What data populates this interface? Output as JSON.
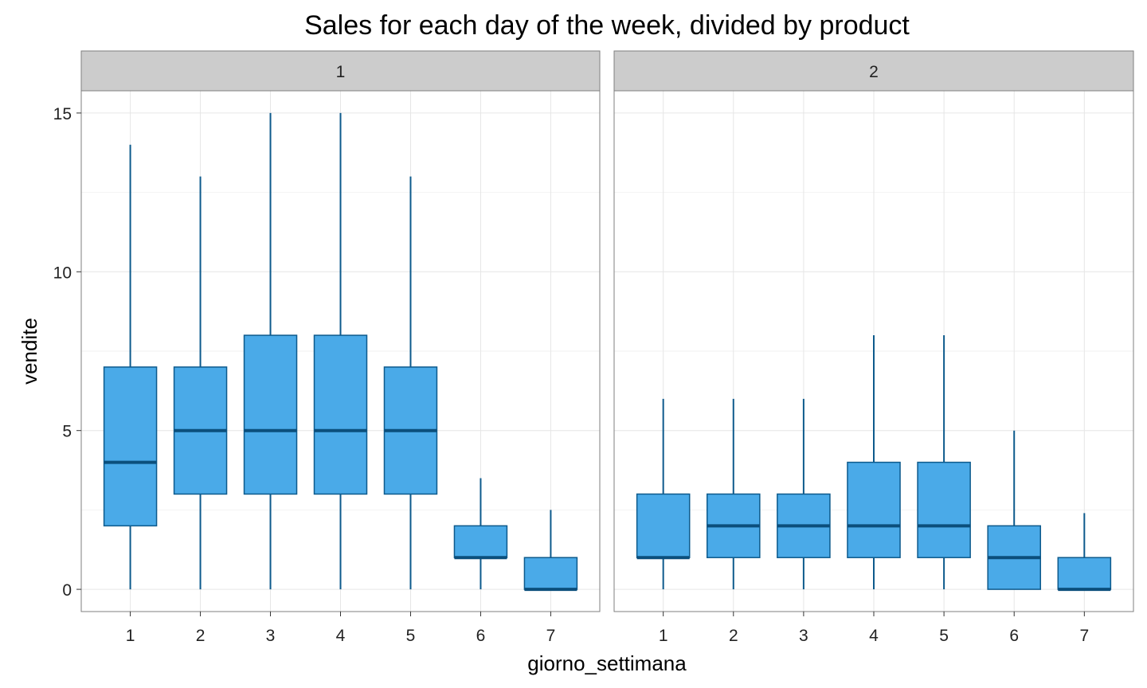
{
  "chart_data": {
    "type": "boxplot",
    "title": "Sales for each day of the week, divided by product",
    "xlabel": "giorno_settimana",
    "ylabel": "vendite",
    "ylim": [
      -0.7,
      15.7
    ],
    "yticks": [
      0,
      5,
      10,
      15
    ],
    "categories": [
      "1",
      "2",
      "3",
      "4",
      "5",
      "6",
      "7"
    ],
    "grid": true,
    "colors": {
      "box_fill": "#4aaae8",
      "box_stroke": "#0d5a8c",
      "median": "#0b4f7c",
      "strip_fill": "#cccccc",
      "panel_border": "#7f7f7f",
      "grid": "#e6e6e6"
    },
    "facets": [
      {
        "label": "1",
        "boxes": [
          {
            "x": "1",
            "min": 0,
            "q1": 2,
            "median": 4,
            "q3": 7,
            "max": 14
          },
          {
            "x": "2",
            "min": 0,
            "q1": 3,
            "median": 5,
            "q3": 7,
            "max": 13
          },
          {
            "x": "3",
            "min": 0,
            "q1": 3,
            "median": 5,
            "q3": 8,
            "max": 15
          },
          {
            "x": "4",
            "min": 0,
            "q1": 3,
            "median": 5,
            "q3": 8,
            "max": 15
          },
          {
            "x": "5",
            "min": 0,
            "q1": 3,
            "median": 5,
            "q3": 7,
            "max": 13
          },
          {
            "x": "6",
            "min": 0,
            "q1": 1,
            "median": 1,
            "q3": 2,
            "max": 3.5
          },
          {
            "x": "7",
            "min": 0,
            "q1": 0,
            "median": 0,
            "q3": 1,
            "max": 2.5
          }
        ]
      },
      {
        "label": "2",
        "boxes": [
          {
            "x": "1",
            "min": 0,
            "q1": 1,
            "median": 1,
            "q3": 3,
            "max": 6
          },
          {
            "x": "2",
            "min": 0,
            "q1": 1,
            "median": 2,
            "q3": 3,
            "max": 6
          },
          {
            "x": "3",
            "min": 0,
            "q1": 1,
            "median": 2,
            "q3": 3,
            "max": 6
          },
          {
            "x": "4",
            "min": 0,
            "q1": 1,
            "median": 2,
            "q3": 4,
            "max": 8
          },
          {
            "x": "5",
            "min": 0,
            "q1": 1,
            "median": 2,
            "q3": 4,
            "max": 8
          },
          {
            "x": "6",
            "min": 0,
            "q1": 0,
            "median": 1,
            "q3": 2,
            "max": 5
          },
          {
            "x": "7",
            "min": 0,
            "q1": 0,
            "median": 0,
            "q3": 1,
            "max": 2.4
          }
        ]
      }
    ]
  }
}
